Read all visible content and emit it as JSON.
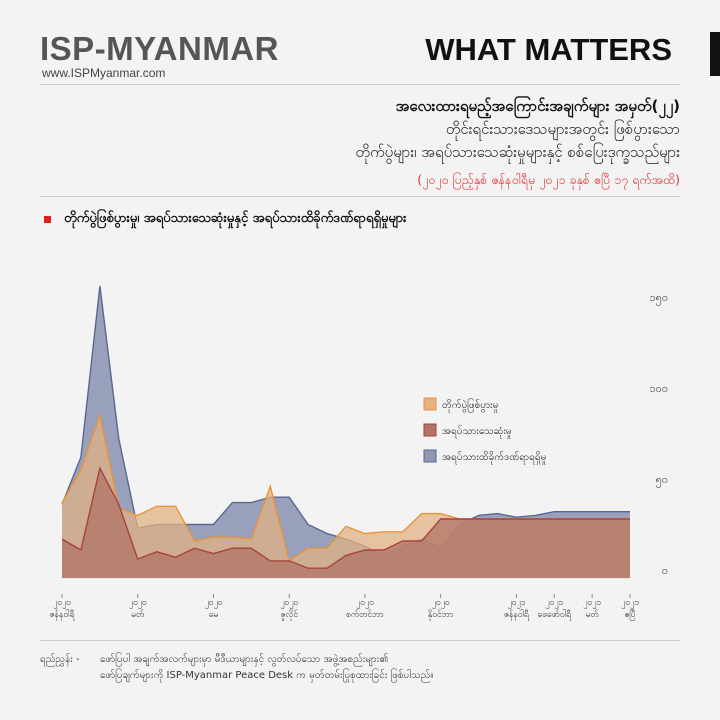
{
  "header": {
    "logo_text": "ISP-MYANMAR",
    "logo_url": "www.ISPMyanmar.com",
    "brand": "WHAT MATTERS"
  },
  "heading": {
    "line1": "အလေးထားရမည့်အကြောင်းအချက်များ အမှတ်(၂၂)",
    "line2": "တိုင်းရင်းသားဒေသများအတွင်း ဖြစ်ပွားသော",
    "line3": "တိုက်ပွဲများ၊ အရပ်သားသေဆုံးမှုများနှင့် စစ်ပြေးဒုက္ခသည်များ",
    "date_range": "(၂၀၂၀ ပြည့်နှစ် ဇန်နဝါရီမှ ၂၀၂၁ ခုနှစ် ဧပြီ ၁၇ ရက်အထိ)"
  },
  "chart_title": "တိုက်ပွဲဖြစ်ပွားမှု၊ အရပ်သားသေဆုံးမှုနှင့် အရပ်သားထိခိုက်ဒဏ်ရာရရှိမှုများ",
  "chart_data": {
    "type": "area",
    "x_tick_labels": [
      {
        "index": 0,
        "year": "၂၀၂၀",
        "month": "ဇန်နဝါရီ"
      },
      {
        "index": 4,
        "year": "၂၀၂၀",
        "month": "မတ်"
      },
      {
        "index": 8,
        "year": "၂၀၂၀",
        "month": "မေ"
      },
      {
        "index": 12,
        "year": "၂၀၂၀",
        "month": "ဇူလိုင်"
      },
      {
        "index": 16,
        "year": "၂၀၂၀",
        "month": "စက်တင်ဘာ"
      },
      {
        "index": 20,
        "year": "၂၀၂၀",
        "month": "နိုဝင်ဘာ"
      },
      {
        "index": 24,
        "year": "၂၀၂၁",
        "month": "ဇန်နဝါရီ"
      },
      {
        "index": 26,
        "year": "၂၀၂၁",
        "month": "ဖေဖော်ဝါရီ"
      },
      {
        "index": 28,
        "year": "၂၀၂၁",
        "month": "မတ်"
      },
      {
        "index": 30,
        "year": "၂၀၂၁",
        "month": "ဧပြီ"
      }
    ],
    "ylim": [
      0,
      150
    ],
    "y_ticks": [
      {
        "value": 0,
        "label": "၀"
      },
      {
        "value": 50,
        "label": "၅၀"
      },
      {
        "value": 100,
        "label": "၁၀၀"
      },
      {
        "value": 150,
        "label": "၁၅၀"
      }
    ],
    "legend_position": "right",
    "series": [
      {
        "name": "အရပ်သားထိခိုက်ဒဏ်ရာရရှိမှု",
        "color": "#5b6791",
        "values": [
          36,
          62,
          156,
          72,
          23,
          25,
          25,
          25,
          25,
          37,
          37,
          40,
          40,
          25,
          20,
          17,
          13,
          8,
          13,
          17,
          12,
          25,
          30,
          31,
          29,
          30,
          32,
          32,
          32,
          32,
          32
        ]
      },
      {
        "name": "တိုက်ပွဲဖြစ်ပွားမှု",
        "color": "#e8943a",
        "values": [
          37,
          55,
          85,
          34,
          30,
          35,
          35,
          16,
          18,
          18,
          17,
          46,
          5,
          12,
          12,
          24,
          20,
          21,
          21,
          31,
          31,
          28,
          28,
          28,
          28,
          28,
          28,
          28,
          28,
          28,
          28
        ]
      },
      {
        "name": "အရပ်သားသေဆုံးမှု",
        "color": "#a8423a",
        "values": [
          17,
          11,
          56,
          36,
          6,
          10,
          7,
          12,
          9,
          12,
          12,
          5,
          5,
          1,
          1,
          8,
          11,
          11,
          16,
          16,
          28,
          28,
          28,
          28,
          28,
          28,
          28,
          28,
          28,
          28,
          28
        ]
      }
    ]
  },
  "footnote": {
    "label": "ရည်ညွှန်း -",
    "line1": "ဖော်ပြပါ အချက်အလက်များမှာ မီဒီယာများနှင့် လွတ်လပ်သော အဖွဲ့အစည်းများ၏",
    "line2": "ဖော်ပြချက်များကို ISP-Myanmar Peace Desk က မှတ်တမ်းပြုစုထားခြင်း ဖြစ်ပါသည်။"
  }
}
